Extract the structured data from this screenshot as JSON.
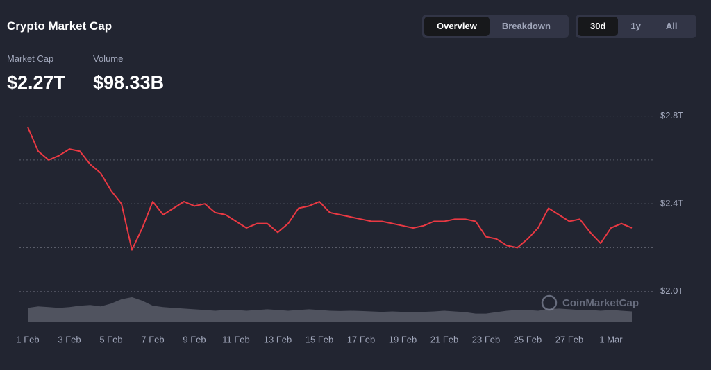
{
  "header": {
    "title": "Crypto Market Cap",
    "tabs": [
      "Overview",
      "Breakdown"
    ],
    "ranges": [
      "30d",
      "1y",
      "All"
    ]
  },
  "stats": [
    {
      "label": "Market Cap",
      "value": "$2.27T"
    },
    {
      "label": "Volume",
      "value": "$98.33B"
    }
  ],
  "watermark": "CoinMarketCap",
  "chart_data": {
    "type": "line",
    "categories": [
      "1 Feb",
      null,
      null,
      null,
      "3 Feb",
      null,
      null,
      null,
      "5 Feb",
      null,
      null,
      null,
      "7 Feb",
      null,
      null,
      null,
      "9 Feb",
      null,
      null,
      null,
      "11 Feb",
      null,
      null,
      null,
      "13 Feb",
      null,
      null,
      null,
      "15 Feb",
      null,
      null,
      null,
      "17 Feb",
      null,
      null,
      null,
      "19 Feb",
      null,
      null,
      null,
      "21 Feb",
      null,
      null,
      null,
      "23 Feb",
      null,
      null,
      null,
      "25 Feb",
      null,
      null,
      null,
      "27 Feb",
      null,
      null,
      null,
      "1 Mar",
      null,
      null
    ],
    "series": [
      {
        "name": "Market Cap",
        "color": "#ea3943",
        "values": [
          2.75,
          2.64,
          2.6,
          2.62,
          2.65,
          2.64,
          2.58,
          2.54,
          2.46,
          2.4,
          2.19,
          2.29,
          2.41,
          2.35,
          2.38,
          2.41,
          2.39,
          2.4,
          2.36,
          2.35,
          2.32,
          2.29,
          2.31,
          2.31,
          2.27,
          2.31,
          2.38,
          2.39,
          2.41,
          2.36,
          2.35,
          2.34,
          2.33,
          2.32,
          2.32,
          2.31,
          2.3,
          2.29,
          2.3,
          2.32,
          2.32,
          2.33,
          2.33,
          2.32,
          2.25,
          2.24,
          2.21,
          2.2,
          2.24,
          2.29,
          2.38,
          2.35,
          2.32,
          2.33,
          2.27,
          2.22,
          2.29,
          2.31,
          2.29
        ]
      },
      {
        "name": "Volume",
        "color": "#5c5f6b",
        "axis": "y2",
        "values": [
          100,
          110,
          105,
          100,
          105,
          115,
          120,
          110,
          130,
          160,
          175,
          150,
          115,
          105,
          100,
          95,
          90,
          85,
          80,
          85,
          85,
          80,
          85,
          90,
          85,
          80,
          85,
          90,
          85,
          80,
          78,
          80,
          78,
          75,
          72,
          75,
          72,
          70,
          72,
          75,
          80,
          75,
          70,
          60,
          60,
          70,
          80,
          85,
          85,
          80,
          90,
          95,
          90,
          85,
          85,
          80,
          85,
          80,
          75
        ]
      }
    ],
    "ylim": [
      1.86,
      2.84
    ],
    "yticks": [
      {
        "value": 2.0,
        "label": "$2.0T"
      },
      {
        "value": 2.2,
        "label": null
      },
      {
        "value": 2.4,
        "label": "$2.4T"
      },
      {
        "value": 2.6,
        "label": null
      },
      {
        "value": 2.8,
        "label": "$2.8T"
      }
    ],
    "y2lim": [
      0,
      1500
    ],
    "grid": true
  }
}
